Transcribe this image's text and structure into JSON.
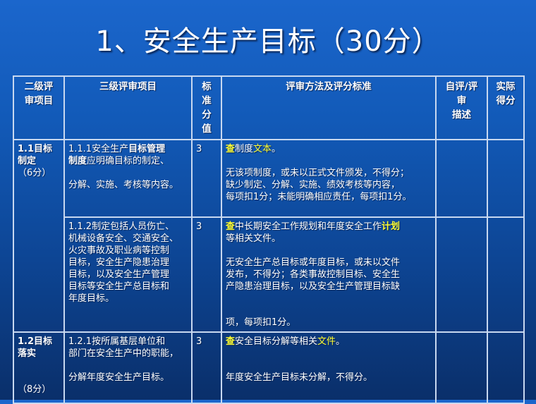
{
  "title": "1、安全生产目标（30分）",
  "headers": [
    "二级评审项目",
    "三级评审项目",
    "标准分值",
    "评审方法及评分标准",
    "自评/评审描述",
    "实际得分"
  ],
  "header_lines": [
    [
      "二级评",
      "审项目"
    ],
    [
      "三级评审项目"
    ],
    [
      "标",
      "准",
      "分",
      "值"
    ],
    [
      "评审方法及评分标准"
    ],
    [
      "自评/评",
      "审",
      "描述"
    ],
    [
      "实际",
      "得分"
    ]
  ],
  "rows": [
    {
      "level2": [
        [
          {
            "t": "1.1目标",
            "s": "b"
          }
        ],
        [
          {
            "t": "制定",
            "s": "b"
          }
        ],
        [
          {
            "t": "（6分）",
            "s": ""
          }
        ]
      ],
      "level3": [
        [
          {
            "t": "1.1.1安全生产",
            "s": ""
          },
          {
            "t": "目标管理",
            "s": "b"
          }
        ],
        [
          {
            "t": "制度",
            "s": "b"
          },
          {
            "t": "应明确目标的制定、",
            "s": ""
          }
        ],
        "gap",
        [
          {
            "t": "分解、实施、考核等内容。",
            "s": ""
          }
        ]
      ],
      "score": "3",
      "method": [
        [
          {
            "t": "查",
            "s": "by"
          },
          {
            "t": "制度",
            "s": ""
          },
          {
            "t": "文本",
            "s": "y"
          },
          {
            "t": "。",
            "s": ""
          }
        ],
        "gap",
        [
          {
            "t": "无该项制度，或未以正式文件颁发，不得分；",
            "s": ""
          }
        ],
        [
          {
            "t": "缺少制定、分解、实施、绩效考核等内容，",
            "s": ""
          }
        ],
        [
          {
            "t": "每项扣1分；未能明确相应责任，每项扣1分。",
            "s": ""
          }
        ]
      ],
      "self_review": "",
      "actual": ""
    },
    {
      "level2": [],
      "level3": [
        [
          {
            "t": "1.1.2制定包括人员伤亡、",
            "s": ""
          }
        ],
        [
          {
            "t": "机械设备安全、交通安全、",
            "s": ""
          }
        ],
        [
          {
            "t": "火灾事故及职业病等控制",
            "s": ""
          }
        ],
        [
          {
            "t": "目标，安全生产隐患治理",
            "s": ""
          }
        ],
        [
          {
            "t": "目标，以及安全生产管理",
            "s": ""
          }
        ],
        [
          {
            "t": "目标等安全生产总目标和",
            "s": ""
          }
        ],
        [
          {
            "t": "年度目标。",
            "s": ""
          }
        ]
      ],
      "score": "3",
      "method": [
        [
          {
            "t": "查",
            "s": "by"
          },
          {
            "t": "中长期安全工作规划和年度安全工作",
            "s": ""
          },
          {
            "t": "计划",
            "s": "by"
          }
        ],
        [
          {
            "t": "等相关文件。",
            "s": ""
          }
        ],
        "gap",
        [
          {
            "t": "无安全生产总目标或年度目标，或未以文件",
            "s": ""
          }
        ],
        [
          {
            "t": "发布，不得分；各类事故控制目标、安全生",
            "s": ""
          }
        ],
        [
          {
            "t": "产隐患治理目标，以及安全生产管理目标缺",
            "s": ""
          }
        ],
        "gap",
        "gap",
        [
          {
            "t": "项，每项扣1分。",
            "s": ""
          }
        ]
      ],
      "self_review": "",
      "actual": ""
    },
    {
      "level2": [
        [
          {
            "t": "1.2目标",
            "s": "b"
          }
        ],
        [
          {
            "t": "落实",
            "s": "b"
          }
        ],
        "gap",
        "gap",
        [
          {
            "t": "（8分）",
            "s": ""
          }
        ]
      ],
      "level3": [
        [
          {
            "t": "1.2.1按所属基层单位和",
            "s": ""
          }
        ],
        [
          {
            "t": "部门在安全生产中的职能，",
            "s": ""
          }
        ],
        "gap",
        [
          {
            "t": "分解年度安全生产目标。",
            "s": ""
          }
        ]
      ],
      "score": "3",
      "method": [
        [
          {
            "t": "查",
            "s": "by"
          },
          {
            "t": "安全目标分解等相关",
            "s": ""
          },
          {
            "t": "文件",
            "s": "y"
          },
          {
            "t": "。",
            "s": ""
          }
        ],
        "gap",
        "gap",
        [
          {
            "t": "年度安全生产目标未分解，不得分。",
            "s": ""
          }
        ]
      ],
      "self_review": "",
      "actual": ""
    }
  ]
}
